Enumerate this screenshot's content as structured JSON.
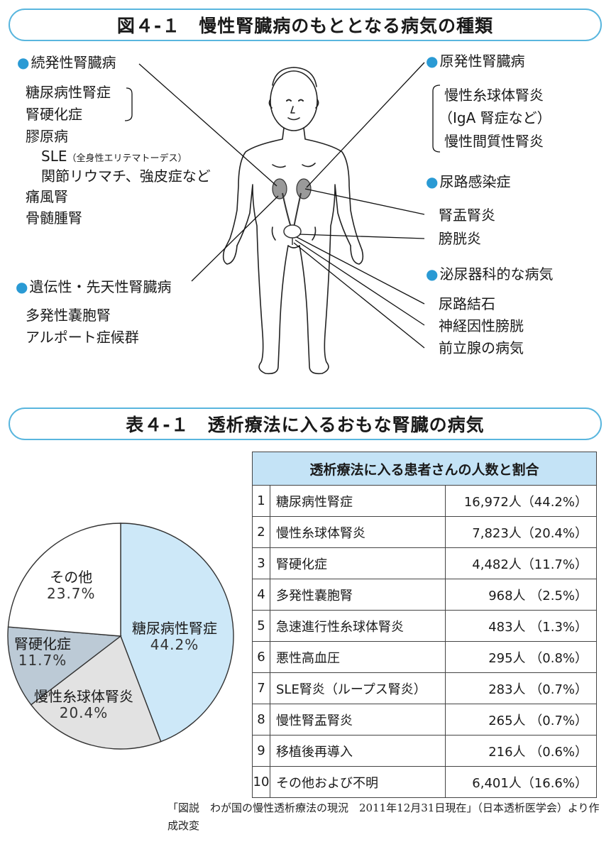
{
  "figure": {
    "title": "図４-１　慢性腎臓病のもととなる病気の種類",
    "secondary": {
      "heading": "続発性腎臓病",
      "items": [
        "糖尿病性腎症",
        "腎硬化症",
        "膠原病",
        "SLE",
        "関節リウマチ、強皮症など",
        "痛風腎",
        "骨髄腫腎"
      ],
      "sle_note": "（全身性エリテマトーデス）"
    },
    "hereditary": {
      "heading": "遺伝性・先天性腎臓病",
      "items": [
        "多発性嚢胞腎",
        "アルポート症候群"
      ]
    },
    "primary": {
      "heading": "原発性腎臓病",
      "items": [
        "慢性糸球体腎炎",
        "（IgA 腎症など）",
        "慢性間質性腎炎"
      ]
    },
    "uti": {
      "heading": "尿路感染症",
      "items": [
        "腎盂腎炎",
        "膀胱炎"
      ]
    },
    "urologic": {
      "heading": "泌尿器科的な病気",
      "items": [
        "尿路結石",
        "神経因性膀胱",
        "前立腺の病気"
      ]
    }
  },
  "table_section": {
    "title": "表４-１　透析療法に入るおもな腎臓の病気"
  },
  "pie": {
    "slices": [
      {
        "label": "糖尿病性腎症",
        "percent": 44.2,
        "pct_text": "44.2%",
        "color": "#cde8f8"
      },
      {
        "label": "慢性糸球体腎炎",
        "percent": 20.4,
        "pct_text": "20.4%",
        "color": "#e2e2e2"
      },
      {
        "label": "腎硬化症",
        "percent": 11.7,
        "pct_text": "11.7%",
        "color": "#bccad6"
      },
      {
        "label": "その他",
        "percent": 23.7,
        "pct_text": "23.7%",
        "color": "#ffffff"
      }
    ]
  },
  "table": {
    "header": "透析療法に入る患者さんの人数と割合",
    "rows": [
      {
        "rank": "1",
        "disease": "糖尿病性腎症",
        "count": "16,972人（44.2%）"
      },
      {
        "rank": "2",
        "disease": "慢性糸球体腎炎",
        "count": "7,823人（20.4%）"
      },
      {
        "rank": "3",
        "disease": "腎硬化症",
        "count": "4,482人（11.7%）"
      },
      {
        "rank": "4",
        "disease": "多発性嚢胞腎",
        "count": "968人 （2.5%）"
      },
      {
        "rank": "5",
        "disease": "急速進行性糸球体腎炎",
        "count": "483人 （1.3%）"
      },
      {
        "rank": "6",
        "disease": "悪性高血圧",
        "count": "295人 （0.8%）"
      },
      {
        "rank": "7",
        "disease": "SLE腎炎（ループス腎炎）",
        "count": "283人 （0.7%）"
      },
      {
        "rank": "8",
        "disease": "慢性腎盂腎炎",
        "count": "265人 （0.7%）"
      },
      {
        "rank": "9",
        "disease": "移植後再導入",
        "count": "216人 （0.6%）"
      },
      {
        "rank": "10",
        "disease": "その他および不明",
        "count": "6,401人（16.6%）"
      }
    ]
  },
  "source": "「図説　わが国の慢性透析療法の現況　2011年12月31日現在」（日本透析医学会）より作成改変"
}
